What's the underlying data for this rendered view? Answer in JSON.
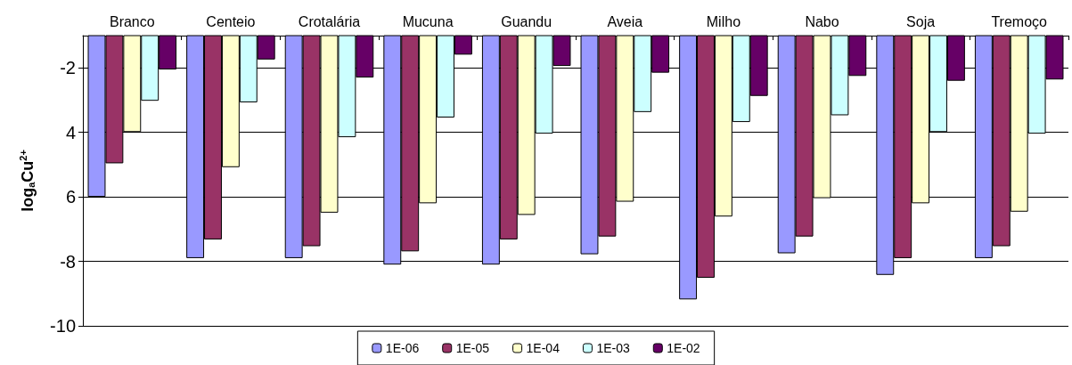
{
  "chart_data": {
    "type": "bar",
    "ylabel": "log$_{a}$Cu$^{2+}$",
    "categories": [
      "Branco",
      "Centeio",
      "Crotalária",
      "Mucuna",
      "Guandu",
      "Aveia",
      "Milho",
      "Nabo",
      "Soja",
      "Tremoço"
    ],
    "series": [
      {
        "name": "1E-06",
        "color": "#9999ff",
        "values": [
          -6.0,
          -7.9,
          -7.9,
          -8.1,
          -8.1,
          -7.78,
          -9.18,
          -7.75,
          -8.42,
          -7.9
        ]
      },
      {
        "name": "1E-05",
        "color": "#993366",
        "values": [
          -4.96,
          -7.32,
          -7.53,
          -7.69,
          -7.32,
          -7.23,
          -8.51,
          -7.23,
          -7.9,
          -7.53
        ]
      },
      {
        "name": "1E-04",
        "color": "#ffffcc",
        "values": [
          -3.99,
          -5.08,
          -6.49,
          -6.2,
          -6.56,
          -6.15,
          -6.61,
          -6.04,
          -6.2,
          -6.46
        ]
      },
      {
        "name": "1E-03",
        "color": "#ccffff",
        "values": [
          -3.02,
          -3.07,
          -4.15,
          -3.54,
          -4.04,
          -3.37,
          -3.68,
          -3.47,
          -3.99,
          -4.04
        ]
      },
      {
        "name": "1E-02",
        "color": "#660066",
        "values": [
          -2.05,
          -1.74,
          -2.3,
          -1.59,
          -1.94,
          -2.15,
          -2.87,
          -2.25,
          -2.4,
          -2.36
        ]
      }
    ],
    "ylim": [
      -10,
      -1
    ],
    "yticks": [
      {
        "value": -10,
        "label": "-10"
      },
      {
        "value": -8,
        "label": "-8"
      },
      {
        "value": -6,
        "label": "6"
      },
      {
        "value": -4,
        "label": "4"
      },
      {
        "value": -2,
        "label": "-2"
      }
    ],
    "grid": "y",
    "legend": "bottom"
  }
}
